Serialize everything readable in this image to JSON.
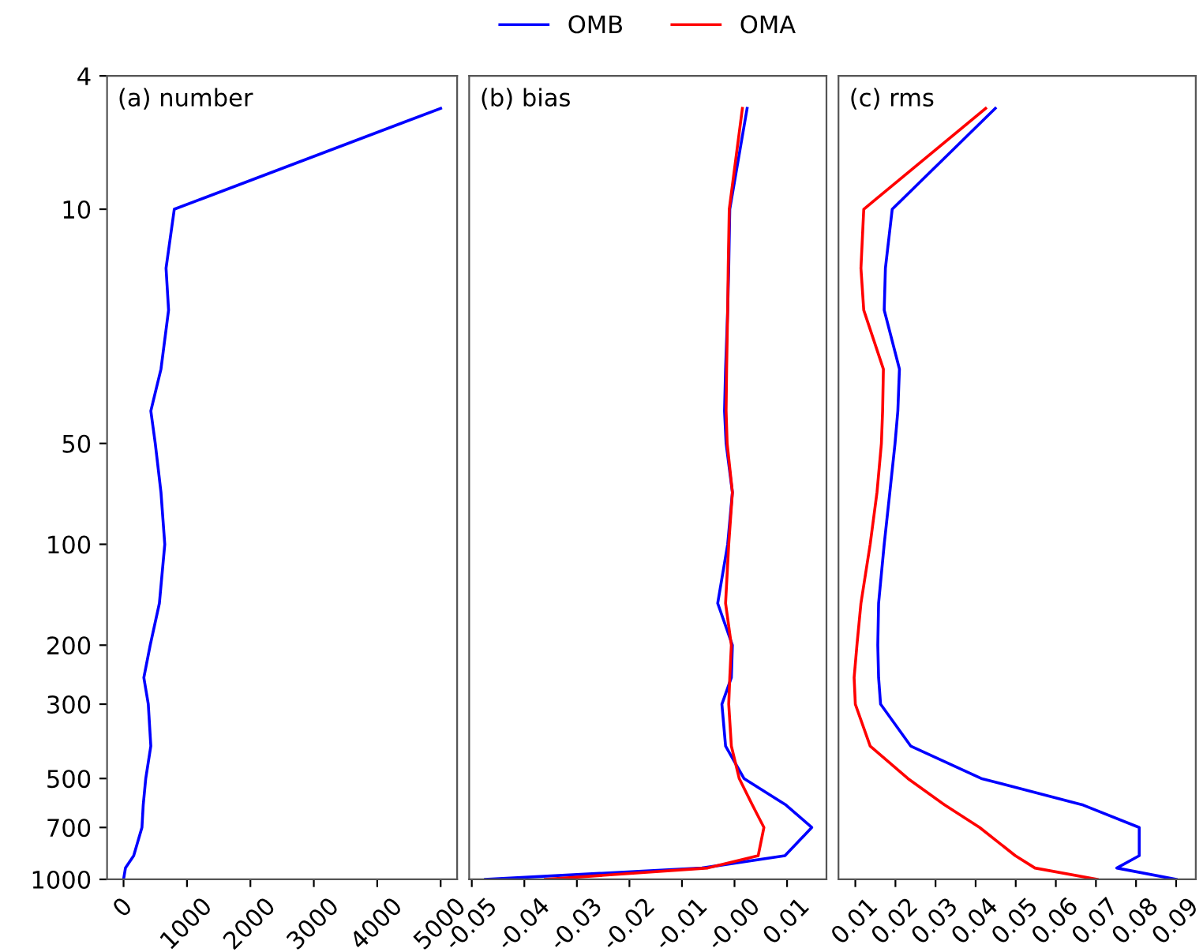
{
  "chart_data": [
    {
      "type": "line",
      "title": "(a) number",
      "log": "y",
      "tick_labels": true,
      "ylim": [
        1000,
        4
      ],
      "yticks": [
        4,
        10,
        50,
        100,
        200,
        300,
        500,
        700,
        1000
      ],
      "xlim": [
        -260,
        5260
      ],
      "xticks": [
        0,
        1000,
        2000,
        3000,
        4000,
        5000
      ],
      "series": [
        {
          "color": "#0000ff",
          "x": [
            5000,
            800,
            670,
            710,
            590,
            430,
            500,
            590,
            650,
            565,
            420,
            320,
            390,
            430,
            350,
            310,
            290,
            160,
            30,
            0
          ],
          "values": [
            5,
            10,
            15,
            20,
            30,
            40,
            50,
            70,
            100,
            150,
            200,
            250,
            300,
            400,
            500,
            600,
            700,
            850,
            925,
            1000
          ]
        }
      ]
    },
    {
      "type": "line",
      "title": "(b) bias",
      "log": "y",
      "tick_labels": "x",
      "legend": "top",
      "ylim": [
        1000,
        4
      ],
      "xlim": [
        -0.0505,
        0.0175
      ],
      "xticks": [
        {
          "value": -0.05,
          "label": "-0.05"
        },
        {
          "value": -0.04,
          "label": "-0.04"
        },
        {
          "value": -0.03,
          "label": "-0.03"
        },
        {
          "value": -0.02,
          "label": "-0.02"
        },
        {
          "value": -0.01,
          "label": "-0.01"
        },
        {
          "value": 0,
          "label": "-0.00"
        },
        {
          "value": 0.01,
          "label": "0.01"
        }
      ],
      "series": [
        {
          "name": "OMB",
          "color": "#0000ff",
          "x": [
            0.0024,
            -0.0009,
            -0.0011,
            -0.0013,
            -0.0017,
            -0.0019,
            -0.0016,
            -0.0004,
            -0.0013,
            -0.0032,
            -0.0004,
            -0.0006,
            -0.0024,
            -0.0017,
            0.0018,
            0.0098,
            0.0147,
            0.0096,
            -0.0062,
            -0.0474
          ],
          "values": [
            5,
            10,
            15,
            20,
            30,
            40,
            50,
            70,
            100,
            150,
            200,
            250,
            300,
            400,
            500,
            600,
            700,
            850,
            925,
            1000
          ]
        },
        {
          "name": "OMA",
          "color": "#ff0000",
          "x": [
            0.0015,
            -0.001,
            -0.0012,
            -0.0013,
            -0.0015,
            -0.0016,
            -0.0014,
            -0.0004,
            -0.0011,
            -0.0017,
            -0.0006,
            -0.0009,
            -0.0011,
            -0.0006,
            0.0009,
            0.0034,
            0.0056,
            0.0045,
            -0.0051,
            -0.036
          ],
          "values": [
            5,
            10,
            15,
            20,
            30,
            40,
            50,
            70,
            100,
            150,
            200,
            250,
            300,
            400,
            500,
            600,
            700,
            850,
            925,
            1000
          ]
        }
      ]
    },
    {
      "type": "line",
      "title": "(c) rms",
      "log": "y",
      "tick_labels": "x",
      "ylim": [
        1000,
        4
      ],
      "xlim": [
        0.0058,
        0.0949
      ],
      "xticks": [
        0.01,
        0.02,
        0.03,
        0.04,
        0.05,
        0.06,
        0.07,
        0.08,
        0.09
      ],
      "series": [
        {
          "color": "#0000ff",
          "x": [
            0.0449,
            0.0192,
            0.0175,
            0.0172,
            0.021,
            0.0206,
            0.0199,
            0.0186,
            0.0172,
            0.0158,
            0.0156,
            0.0158,
            0.0163,
            0.0238,
            0.0414,
            0.0668,
            0.0808,
            0.0808,
            0.0752,
            0.09
          ],
          "values": [
            5,
            10,
            15,
            20,
            30,
            40,
            50,
            70,
            100,
            150,
            200,
            250,
            300,
            400,
            500,
            600,
            700,
            850,
            925,
            1000
          ]
        },
        {
          "color": "#ff0000",
          "x": [
            0.0425,
            0.0121,
            0.0114,
            0.0121,
            0.017,
            0.0168,
            0.0165,
            0.0154,
            0.0137,
            0.0114,
            0.0104,
            0.0097,
            0.01,
            0.0137,
            0.0231,
            0.0323,
            0.041,
            0.0499,
            0.0548,
            0.0703
          ],
          "values": [
            5,
            10,
            15,
            20,
            30,
            40,
            50,
            70,
            100,
            150,
            200,
            250,
            300,
            400,
            500,
            600,
            700,
            850,
            925,
            1000
          ]
        }
      ]
    }
  ]
}
